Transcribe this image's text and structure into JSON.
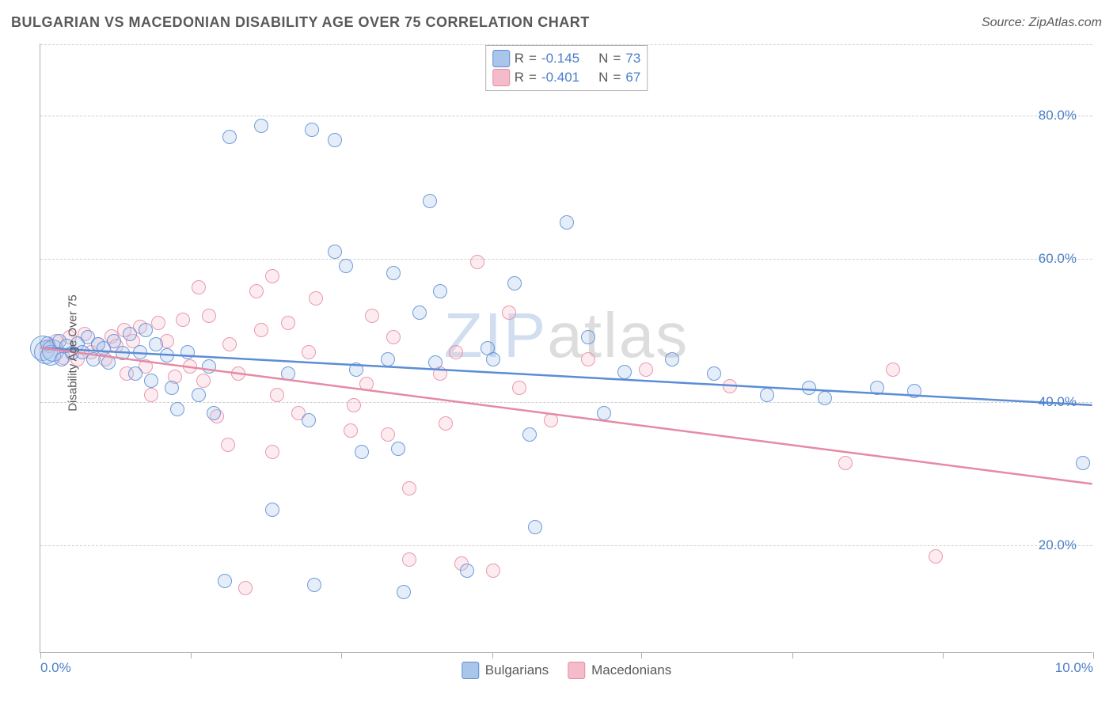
{
  "header": {
    "title": "BULGARIAN VS MACEDONIAN DISABILITY AGE OVER 75 CORRELATION CHART",
    "source": "Source: ZipAtlas.com"
  },
  "watermark": {
    "part1": "ZIP",
    "part2": "atlas"
  },
  "chart": {
    "type": "scatter",
    "ylabel": "Disability Age Over 75",
    "xlim": [
      0,
      10
    ],
    "ylim": [
      5,
      90
    ],
    "yticks": [
      20,
      40,
      60,
      80
    ],
    "ytick_labels": [
      "20.0%",
      "40.0%",
      "60.0%",
      "80.0%"
    ],
    "xticks": [
      0,
      1.43,
      2.86,
      4.29,
      5.71,
      7.14,
      8.57,
      10
    ],
    "xtick_labels_shown": {
      "0": "0.0%",
      "10": "10.0%"
    },
    "grid_color": "#cfcfcf",
    "axis_color": "#b0b0b0",
    "background_color": "#ffffff",
    "point_radius": 9,
    "point_fill_opacity": 0.3,
    "point_stroke_opacity": 0.85,
    "trendline_width": 2.5,
    "series": [
      {
        "name": "Bulgarians",
        "color": "#5b8dd6",
        "fill": "#a9c5ea",
        "R": "-0.145",
        "N": "73",
        "trendline": {
          "y_at_x0": 47.5,
          "y_at_x10": 39.5
        },
        "points": [
          {
            "x": 0.02,
            "y": 47.5,
            "r": 16
          },
          {
            "x": 0.05,
            "y": 47.0,
            "r": 15
          },
          {
            "x": 0.07,
            "y": 48.2
          },
          {
            "x": 0.1,
            "y": 46.5,
            "r": 13
          },
          {
            "x": 0.12,
            "y": 47.2,
            "r": 14
          },
          {
            "x": 0.18,
            "y": 48.5
          },
          {
            "x": 0.2,
            "y": 46.0
          },
          {
            "x": 0.25,
            "y": 47.8
          },
          {
            "x": 0.3,
            "y": 46.8
          },
          {
            "x": 0.35,
            "y": 48.2
          },
          {
            "x": 0.4,
            "y": 47.0
          },
          {
            "x": 0.45,
            "y": 49.0
          },
          {
            "x": 0.5,
            "y": 46.0
          },
          {
            "x": 0.55,
            "y": 48.0
          },
          {
            "x": 0.6,
            "y": 47.5
          },
          {
            "x": 0.65,
            "y": 45.5
          },
          {
            "x": 0.7,
            "y": 48.5
          },
          {
            "x": 0.78,
            "y": 46.8
          },
          {
            "x": 0.85,
            "y": 49.5
          },
          {
            "x": 0.9,
            "y": 44.0
          },
          {
            "x": 0.95,
            "y": 47.0
          },
          {
            "x": 1.0,
            "y": 50.0
          },
          {
            "x": 1.05,
            "y": 43.0
          },
          {
            "x": 1.1,
            "y": 48.0
          },
          {
            "x": 1.2,
            "y": 46.5
          },
          {
            "x": 1.25,
            "y": 42.0
          },
          {
            "x": 1.3,
            "y": 39.0
          },
          {
            "x": 1.4,
            "y": 47.0
          },
          {
            "x": 1.5,
            "y": 41.0
          },
          {
            "x": 1.6,
            "y": 45.0
          },
          {
            "x": 1.65,
            "y": 38.5
          },
          {
            "x": 1.75,
            "y": 15.0
          },
          {
            "x": 1.8,
            "y": 77.0
          },
          {
            "x": 2.1,
            "y": 78.5
          },
          {
            "x": 2.2,
            "y": 25.0
          },
          {
            "x": 2.35,
            "y": 44.0
          },
          {
            "x": 2.58,
            "y": 78.0
          },
          {
            "x": 2.55,
            "y": 37.5
          },
          {
            "x": 2.6,
            "y": 14.5
          },
          {
            "x": 2.8,
            "y": 61.0
          },
          {
            "x": 2.8,
            "y": 76.5
          },
          {
            "x": 2.9,
            "y": 59.0
          },
          {
            "x": 3.0,
            "y": 44.5
          },
          {
            "x": 3.05,
            "y": 33.0
          },
          {
            "x": 3.3,
            "y": 46.0
          },
          {
            "x": 3.35,
            "y": 58.0
          },
          {
            "x": 3.4,
            "y": 33.5
          },
          {
            "x": 3.45,
            "y": 13.5
          },
          {
            "x": 3.6,
            "y": 52.5
          },
          {
            "x": 3.7,
            "y": 68.0
          },
          {
            "x": 3.75,
            "y": 45.5
          },
          {
            "x": 3.8,
            "y": 55.5
          },
          {
            "x": 4.05,
            "y": 16.5
          },
          {
            "x": 4.25,
            "y": 47.5
          },
          {
            "x": 4.3,
            "y": 46.0
          },
          {
            "x": 4.5,
            "y": 56.5
          },
          {
            "x": 4.65,
            "y": 35.5
          },
          {
            "x": 4.7,
            "y": 22.5
          },
          {
            "x": 5.0,
            "y": 65.0
          },
          {
            "x": 5.2,
            "y": 49.0
          },
          {
            "x": 5.35,
            "y": 38.5
          },
          {
            "x": 5.55,
            "y": 44.2
          },
          {
            "x": 6.0,
            "y": 46.0
          },
          {
            "x": 6.4,
            "y": 44.0
          },
          {
            "x": 6.9,
            "y": 41.0
          },
          {
            "x": 7.3,
            "y": 42.0
          },
          {
            "x": 7.45,
            "y": 40.5
          },
          {
            "x": 7.95,
            "y": 42.0
          },
          {
            "x": 8.3,
            "y": 41.5
          },
          {
            "x": 9.9,
            "y": 31.5
          }
        ]
      },
      {
        "name": "Macedonians",
        "color": "#e68aa4",
        "fill": "#f4bccb",
        "R": "-0.401",
        "N": "67",
        "trendline": {
          "y_at_x0": 47.5,
          "y_at_x10": 28.5
        },
        "points": [
          {
            "x": 0.08,
            "y": 47.8
          },
          {
            "x": 0.15,
            "y": 48.5
          },
          {
            "x": 0.22,
            "y": 46.2
          },
          {
            "x": 0.28,
            "y": 49.0
          },
          {
            "x": 0.35,
            "y": 46.0
          },
          {
            "x": 0.42,
            "y": 49.5
          },
          {
            "x": 0.48,
            "y": 47.0
          },
          {
            "x": 0.55,
            "y": 48.0
          },
          {
            "x": 0.62,
            "y": 46.0
          },
          {
            "x": 0.68,
            "y": 49.2
          },
          {
            "x": 0.72,
            "y": 47.8
          },
          {
            "x": 0.8,
            "y": 50.0
          },
          {
            "x": 0.82,
            "y": 44.0
          },
          {
            "x": 0.88,
            "y": 48.5
          },
          {
            "x": 0.95,
            "y": 50.5
          },
          {
            "x": 1.0,
            "y": 45.0
          },
          {
            "x": 1.05,
            "y": 41.0
          },
          {
            "x": 1.12,
            "y": 51.0
          },
          {
            "x": 1.2,
            "y": 48.5
          },
          {
            "x": 1.28,
            "y": 43.5
          },
          {
            "x": 1.35,
            "y": 51.5
          },
          {
            "x": 1.42,
            "y": 45.0
          },
          {
            "x": 1.5,
            "y": 56.0
          },
          {
            "x": 1.55,
            "y": 43.0
          },
          {
            "x": 1.6,
            "y": 52.0
          },
          {
            "x": 1.68,
            "y": 38.0
          },
          {
            "x": 1.78,
            "y": 34.0
          },
          {
            "x": 1.8,
            "y": 48.0
          },
          {
            "x": 1.88,
            "y": 44.0
          },
          {
            "x": 1.95,
            "y": 14.0
          },
          {
            "x": 2.05,
            "y": 55.5
          },
          {
            "x": 2.1,
            "y": 50.0
          },
          {
            "x": 2.2,
            "y": 33.0
          },
          {
            "x": 2.2,
            "y": 57.5
          },
          {
            "x": 2.25,
            "y": 41.0
          },
          {
            "x": 2.35,
            "y": 51.0
          },
          {
            "x": 2.45,
            "y": 38.5
          },
          {
            "x": 2.55,
            "y": 47.0
          },
          {
            "x": 2.62,
            "y": 54.5
          },
          {
            "x": 2.95,
            "y": 36.0
          },
          {
            "x": 2.98,
            "y": 39.5
          },
          {
            "x": 3.1,
            "y": 42.5
          },
          {
            "x": 3.15,
            "y": 52.0
          },
          {
            "x": 3.3,
            "y": 35.5
          },
          {
            "x": 3.35,
            "y": 49.0
          },
          {
            "x": 3.5,
            "y": 18.0
          },
          {
            "x": 3.5,
            "y": 28.0
          },
          {
            "x": 3.8,
            "y": 44.0
          },
          {
            "x": 3.85,
            "y": 37.0
          },
          {
            "x": 3.95,
            "y": 47.0
          },
          {
            "x": 4.0,
            "y": 17.5
          },
          {
            "x": 4.15,
            "y": 59.5
          },
          {
            "x": 4.3,
            "y": 16.5
          },
          {
            "x": 4.45,
            "y": 52.5
          },
          {
            "x": 4.55,
            "y": 42.0
          },
          {
            "x": 4.85,
            "y": 37.5
          },
          {
            "x": 5.2,
            "y": 46.0
          },
          {
            "x": 5.75,
            "y": 44.5
          },
          {
            "x": 6.55,
            "y": 42.2
          },
          {
            "x": 7.65,
            "y": 31.5
          },
          {
            "x": 8.1,
            "y": 44.5
          },
          {
            "x": 8.5,
            "y": 18.5
          }
        ]
      }
    ],
    "bottom_legend": [
      {
        "label": "Bulgarians",
        "fill": "#a9c5ea",
        "stroke": "#5b8dd6"
      },
      {
        "label": "Macedonians",
        "fill": "#f4bccb",
        "stroke": "#e68aa4"
      }
    ],
    "stat_legend_labels": {
      "R": "R",
      "eq": "=",
      "N": "N"
    },
    "label_fontsize": 15,
    "tick_fontsize": 17,
    "tick_color": "#4a7ec9",
    "text_color": "#595959"
  }
}
